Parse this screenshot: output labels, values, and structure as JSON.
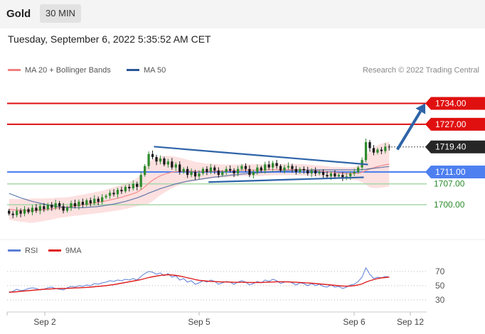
{
  "header": {
    "symbol": "Gold",
    "timeframe": "30 MIN"
  },
  "datetime": "Tuesday, September 6, 2022 5:35:52 AM CET",
  "legend": {
    "main": [
      {
        "label": "MA 20 + Bollinger Bands",
        "color": "#f08080"
      },
      {
        "label": "MA 50",
        "color": "#2b5797"
      }
    ],
    "rsi": [
      {
        "label": "RSI",
        "color": "#5b7fd6"
      },
      {
        "label": "9MA",
        "color": "#e02020"
      }
    ]
  },
  "credit": "Research © 2022 Trading Central",
  "colors": {
    "resistance": "#e01010",
    "support_strong": "#4d7ff0",
    "support": "#a8d8a8",
    "arrow": "#2e64a8",
    "candle_up": "#2e8b2e",
    "candle_down": "#1a1a1a",
    "band_fill": "#fde0e0"
  },
  "chart_data": [
    {
      "type": "candlestick",
      "title": "",
      "x_labels": [
        "Sep 2",
        "Sep 5",
        "Sep 6",
        "Sep 12"
      ],
      "ylim": [
        1690,
        1742
      ],
      "last_price": {
        "value": 1719.4,
        "label": "1719.40"
      },
      "levels": [
        {
          "value": 1734.0,
          "label": "1734.00",
          "kind": "resistance"
        },
        {
          "value": 1727.0,
          "label": "1727.00",
          "kind": "resistance"
        },
        {
          "value": 1711.0,
          "label": "1711.00",
          "kind": "support_strong"
        },
        {
          "value": 1707.0,
          "label": "1707.00",
          "kind": "support"
        },
        {
          "value": 1700.0,
          "label": "1700.00",
          "kind": "support"
        }
      ],
      "trendlines": [
        {
          "name": "upper",
          "from": [
            0.35,
            1719.5
          ],
          "to": [
            0.86,
            1713.5
          ]
        },
        {
          "name": "lower",
          "from": [
            0.48,
            1707.6
          ],
          "to": [
            0.85,
            1709.2
          ]
        }
      ],
      "arrow": {
        "from": [
          0.93,
          1718.5
        ],
        "to": [
          1.0,
          1734.0
        ]
      },
      "close_series": [
        1697,
        1696.5,
        1698,
        1697,
        1698.5,
        1697.5,
        1699,
        1698,
        1699.5,
        1698.5,
        1700,
        1699,
        1700.5,
        1699.5,
        1698,
        1699,
        1700.5,
        1699.5,
        1701,
        1700,
        1701.5,
        1700.5,
        1702,
        1701,
        1702.5,
        1703,
        1704,
        1703.5,
        1705,
        1704.5,
        1706,
        1705.5,
        1707,
        1706,
        1710,
        1713,
        1717,
        1716,
        1714.5,
        1715.5,
        1713.5,
        1714.5,
        1712.5,
        1713.5,
        1711,
        1712,
        1710,
        1711,
        1709.5,
        1710.5,
        1712,
        1711,
        1712.5,
        1711.5,
        1710,
        1711,
        1712,
        1711.5,
        1710.5,
        1712,
        1713,
        1712,
        1710,
        1711,
        1712.5,
        1711.5,
        1713.5,
        1712.5,
        1714,
        1713,
        1711.5,
        1712.5,
        1713,
        1712,
        1711,
        1712,
        1711.5,
        1710.5,
        1711.5,
        1710.5,
        1711,
        1710,
        1709.5,
        1710.5,
        1709.5,
        1710,
        1709,
        1709.5,
        1710.5,
        1711,
        1712.5,
        1715,
        1721,
        1719,
        1717.5,
        1718.5,
        1718,
        1719.5,
        1719.4
      ],
      "ma20_series": [
        1698.5,
        1698.3,
        1698.2,
        1698.1,
        1698.1,
        1698.0,
        1698.0,
        1698.1,
        1698.2,
        1698.3,
        1698.5,
        1698.6,
        1698.8,
        1699.0,
        1699.1,
        1699.2,
        1699.4,
        1699.6,
        1699.8,
        1700.0,
        1700.2,
        1700.4,
        1700.6,
        1700.8,
        1701.0,
        1701.3,
        1701.6,
        1701.9,
        1702.2,
        1702.5,
        1702.9,
        1703.3,
        1703.7,
        1704.2,
        1705.0,
        1706.0,
        1707.2,
        1708.2,
        1709.0,
        1709.7,
        1710.2,
        1710.6,
        1710.9,
        1711.1,
        1711.2,
        1711.3,
        1711.3,
        1711.3,
        1711.2,
        1711.2,
        1711.2,
        1711.2,
        1711.2,
        1711.3,
        1711.3,
        1711.3,
        1711.3,
        1711.4,
        1711.4,
        1711.5,
        1711.6,
        1711.6,
        1711.6,
        1711.6,
        1711.6,
        1711.6,
        1711.7,
        1711.7,
        1711.8,
        1711.8,
        1711.8,
        1711.8,
        1711.8,
        1711.8,
        1711.8,
        1711.7,
        1711.7,
        1711.6,
        1711.5,
        1711.4,
        1711.3,
        1711.2,
        1711.0,
        1710.9,
        1710.8,
        1710.7,
        1710.6,
        1710.5,
        1710.5,
        1710.5,
        1710.6,
        1710.9,
        1711.5,
        1712.0,
        1712.4,
        1712.8,
        1713.1,
        1713.4,
        1713.6
      ],
      "ma50_series": [
        1703.8,
        1703.3,
        1702.8,
        1702.3,
        1701.9,
        1701.5,
        1701.1,
        1700.8,
        1700.5,
        1700.2,
        1699.9,
        1699.7,
        1699.5,
        1699.3,
        1699.2,
        1699.1,
        1699.0,
        1699.0,
        1699.0,
        1699.0,
        1699.1,
        1699.2,
        1699.3,
        1699.4,
        1699.6,
        1699.8,
        1700.0,
        1700.2,
        1700.5,
        1700.8,
        1701.1,
        1701.5,
        1701.9,
        1702.3,
        1702.8,
        1703.3,
        1703.9,
        1704.4,
        1704.9,
        1705.4,
        1705.8,
        1706.2,
        1706.6,
        1707.0,
        1707.3,
        1707.6,
        1707.9,
        1708.1,
        1708.3,
        1708.5,
        1708.7,
        1708.9,
        1709.1,
        1709.3,
        1709.4,
        1709.6,
        1709.7,
        1709.9,
        1710.0,
        1710.1,
        1710.3,
        1710.4,
        1710.5,
        1710.6,
        1710.7,
        1710.8,
        1710.9,
        1711.0,
        1711.1,
        1711.2,
        1711.3,
        1711.3,
        1711.4,
        1711.5,
        1711.5,
        1711.6,
        1711.6,
        1711.6,
        1711.7,
        1711.7,
        1711.7,
        1711.7,
        1711.7,
        1711.7,
        1711.7,
        1711.7,
        1711.7,
        1711.7,
        1711.7,
        1711.7,
        1711.7,
        1711.8,
        1711.9,
        1712.1,
        1712.2,
        1712.4,
        1712.5,
        1712.7,
        1712.8
      ],
      "band_width": [
        3.5,
        3.6,
        3.7,
        3.8,
        3.9,
        4.0,
        4.1,
        4.0,
        3.9,
        3.8,
        3.7,
        3.6,
        3.5,
        3.4,
        3.3,
        3.3,
        3.3,
        3.3,
        3.4,
        3.4,
        3.5,
        3.5,
        3.6,
        3.6,
        3.7,
        3.8,
        3.9,
        4.0,
        4.1,
        4.2,
        4.3,
        4.4,
        4.5,
        4.7,
        5.2,
        6.0,
        6.8,
        7.0,
        6.8,
        6.5,
        6.2,
        5.8,
        5.4,
        5.0,
        4.6,
        4.2,
        3.8,
        3.5,
        3.2,
        3.0,
        2.8,
        2.6,
        2.5,
        2.4,
        2.3,
        2.2,
        2.2,
        2.1,
        2.1,
        2.0,
        2.0,
        2.0,
        2.0,
        2.0,
        2.0,
        2.0,
        1.9,
        1.9,
        1.9,
        1.9,
        1.9,
        1.9,
        1.9,
        1.9,
        1.9,
        1.9,
        1.9,
        1.9,
        1.9,
        1.9,
        1.9,
        1.9,
        1.9,
        1.9,
        1.9,
        2.0,
        2.0,
        2.0,
        2.1,
        2.2,
        2.5,
        3.2,
        4.8,
        6.2,
        6.8,
        7.2,
        7.4,
        7.5,
        7.5
      ]
    },
    {
      "type": "line",
      "title": "",
      "x_labels": [
        "Sep 2",
        "Sep 5",
        "Sep 6",
        "Sep 12"
      ],
      "yticks": [
        "70",
        "50",
        "30"
      ],
      "ytick_values": [
        70,
        50,
        30
      ],
      "ylim": [
        20,
        80
      ],
      "series": [
        {
          "name": "RSI",
          "values": [
            40,
            42,
            45,
            43,
            44,
            46,
            47,
            46,
            44,
            45,
            47,
            48,
            46,
            45,
            44,
            47,
            49,
            48,
            50,
            49,
            51,
            50,
            53,
            52,
            54,
            55,
            57,
            56,
            58,
            57,
            59,
            58,
            60,
            58,
            63,
            67,
            70,
            69,
            66,
            68,
            64,
            67,
            62,
            64,
            58,
            60,
            55,
            57,
            52,
            54,
            57,
            55,
            58,
            56,
            52,
            54,
            56,
            55,
            52,
            55,
            57,
            55,
            51,
            53,
            56,
            54,
            58,
            56,
            59,
            57,
            53,
            55,
            56,
            54,
            51,
            54,
            53,
            50,
            53,
            50,
            52,
            49,
            48,
            51,
            48,
            49,
            46,
            48,
            51,
            52,
            56,
            62,
            75,
            66,
            60,
            62,
            61,
            63,
            62
          ]
        },
        {
          "name": "9MA",
          "values": [
            41,
            41,
            41.5,
            42,
            42.5,
            43,
            43.5,
            44,
            44.5,
            45,
            45.2,
            45.5,
            45.8,
            46,
            46,
            46.2,
            46.5,
            46.8,
            47,
            47.3,
            47.6,
            48,
            48.5,
            49,
            49.5,
            50,
            50.8,
            51.5,
            52.5,
            53.5,
            54.5,
            55.5,
            56.5,
            57.5,
            58.5,
            60,
            61.5,
            62.5,
            63.5,
            64.5,
            65,
            65.5,
            65,
            64.5,
            63.5,
            62.5,
            61,
            60,
            58.5,
            57.5,
            57,
            56.5,
            56,
            55.8,
            55.5,
            55.3,
            55.2,
            55,
            54.8,
            54.8,
            54.8,
            54.7,
            54.5,
            54.5,
            54.5,
            54.5,
            54.8,
            55,
            55.2,
            55.5,
            55.5,
            55.5,
            55.3,
            55,
            54.8,
            54.5,
            54.2,
            53.8,
            53.5,
            53,
            52.5,
            52,
            51.5,
            51,
            50.5,
            50,
            49.5,
            49.3,
            49.5,
            50,
            51,
            52.5,
            55,
            57,
            58.5,
            60,
            61,
            61.5,
            62
          ]
        }
      ]
    }
  ]
}
